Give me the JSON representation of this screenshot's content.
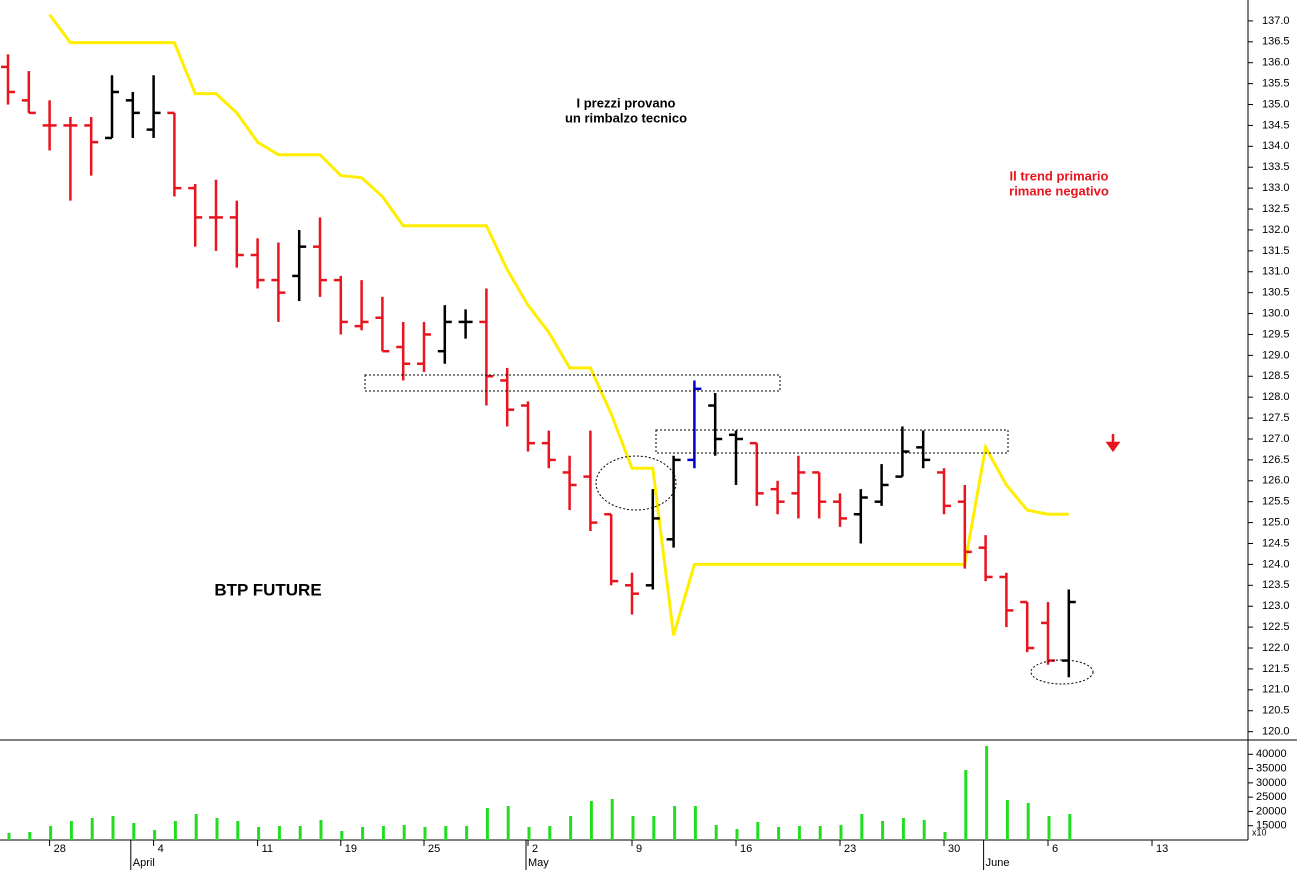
{
  "chart_data": {
    "type": "ohlc",
    "title": "BTP FUTURE",
    "annotations": [
      {
        "lines": [
          "I prezzi provano",
          "un rimbalzo tecnico"
        ],
        "color": "#000000"
      },
      {
        "lines": [
          "Il trend primario",
          "rimane negativo"
        ],
        "color": "#e8141e"
      }
    ],
    "categories": [
      null,
      null,
      "28",
      null,
      null,
      null,
      null,
      "4",
      null,
      null,
      null,
      null,
      "11",
      null,
      null,
      null,
      "19",
      null,
      null,
      null,
      "25",
      null,
      null,
      null,
      null,
      "2",
      null,
      null,
      null,
      null,
      "9",
      null,
      null,
      null,
      null,
      "16",
      null,
      null,
      null,
      null,
      "23",
      null,
      null,
      null,
      null,
      "30",
      null,
      null,
      null,
      null,
      "6",
      null,
      null,
      null,
      null,
      "13",
      null,
      null,
      null,
      null
    ],
    "months": [
      null,
      null,
      null,
      null,
      null,
      null,
      "April",
      null,
      null,
      null,
      null,
      null,
      null,
      null,
      null,
      null,
      null,
      null,
      null,
      null,
      null,
      null,
      null,
      null,
      null,
      "May",
      null,
      null,
      null,
      null,
      null,
      null,
      null,
      null,
      null,
      null,
      null,
      null,
      null,
      null,
      null,
      null,
      null,
      null,
      null,
      null,
      null,
      "June",
      null,
      null,
      null,
      null,
      null,
      null,
      null,
      null,
      null,
      null,
      null,
      null
    ],
    "open": [
      135.9,
      135.1,
      134.5,
      134.5,
      134.5,
      134.2,
      135.1,
      134.4,
      134.8,
      133.0,
      132.3,
      132.3,
      131.4,
      130.8,
      130.9,
      131.6,
      130.8,
      129.7,
      129.9,
      129.2,
      128.8,
      129.1,
      129.8,
      129.8,
      128.4,
      127.8,
      126.9,
      126.2,
      126.1,
      125.2,
      123.5,
      123.5,
      124.6,
      126.5,
      127.8,
      127.1,
      126.9,
      125.8,
      125.7,
      126.2,
      125.5,
      125.2,
      125.5,
      126.1,
      126.8,
      126.2,
      125.5,
      124.4,
      123.7,
      123.1,
      122.6,
      121.7,
      null,
      null,
      null,
      null,
      null,
      null,
      null,
      null
    ],
    "high": [
      136.2,
      135.8,
      135.1,
      134.7,
      134.7,
      135.7,
      135.3,
      135.7,
      134.8,
      133.1,
      133.2,
      132.7,
      131.8,
      131.7,
      132.0,
      132.3,
      130.9,
      130.8,
      130.4,
      129.8,
      129.8,
      130.2,
      130.1,
      130.6,
      128.7,
      127.9,
      127.2,
      126.6,
      127.2,
      125.2,
      123.8,
      125.8,
      126.6,
      128.4,
      128.1,
      127.2,
      126.9,
      126.0,
      126.6,
      126.2,
      125.7,
      125.8,
      126.4,
      127.3,
      127.2,
      126.3,
      125.9,
      124.7,
      123.8,
      123.1,
      123.1,
      123.4,
      null,
      null,
      null,
      null,
      null,
      null,
      null,
      null
    ],
    "low": [
      135.0,
      134.8,
      133.9,
      132.7,
      133.3,
      134.2,
      134.2,
      134.2,
      132.8,
      131.6,
      131.5,
      131.1,
      130.6,
      129.8,
      130.3,
      130.4,
      129.5,
      129.6,
      129.1,
      128.4,
      128.6,
      128.8,
      129.4,
      127.8,
      127.3,
      126.7,
      126.3,
      125.3,
      124.8,
      123.5,
      122.8,
      123.4,
      124.4,
      126.3,
      126.6,
      125.9,
      125.4,
      125.2,
      125.1,
      125.1,
      124.9,
      124.5,
      125.4,
      126.1,
      126.3,
      125.2,
      123.9,
      123.6,
      122.5,
      121.9,
      121.6,
      121.3,
      null,
      null,
      null,
      null,
      null,
      null,
      null,
      null
    ],
    "close": [
      135.3,
      134.8,
      134.5,
      134.5,
      134.1,
      135.3,
      134.8,
      134.8,
      133.0,
      132.3,
      132.3,
      131.4,
      130.8,
      130.5,
      131.6,
      130.8,
      129.8,
      129.8,
      129.1,
      128.8,
      129.5,
      129.8,
      129.8,
      128.5,
      127.7,
      126.9,
      126.5,
      125.9,
      125.0,
      123.6,
      123.3,
      125.1,
      126.5,
      128.2,
      127.0,
      127.0,
      125.7,
      125.5,
      126.2,
      125.5,
      125.1,
      125.6,
      125.9,
      126.7,
      126.5,
      125.4,
      124.3,
      123.7,
      122.9,
      122.0,
      121.7,
      123.1,
      null,
      null,
      null,
      null,
      null,
      null,
      null,
      null
    ],
    "colors": [
      "#e8141e",
      "#e8141e",
      "#e8141e",
      "#e8141e",
      "#e8141e",
      "#000000",
      "#000000",
      "#000000",
      "#e8141e",
      "#e8141e",
      "#e8141e",
      "#e8141e",
      "#e8141e",
      "#e8141e",
      "#000000",
      "#e8141e",
      "#e8141e",
      "#e8141e",
      "#e8141e",
      "#e8141e",
      "#e8141e",
      "#000000",
      "#000000",
      "#e8141e",
      "#e8141e",
      "#e8141e",
      "#e8141e",
      "#e8141e",
      "#e8141e",
      "#e8141e",
      "#e8141e",
      "#000000",
      "#000000",
      "#0000cc",
      "#000000",
      "#000000",
      "#e8141e",
      "#e8141e",
      "#e8141e",
      "#e8141e",
      "#e8141e",
      "#000000",
      "#000000",
      "#000000",
      "#000000",
      "#e8141e",
      "#e8141e",
      "#e8141e",
      "#e8141e",
      "#e8141e",
      "#e8141e",
      "#000000",
      null,
      null,
      null,
      null,
      null,
      null,
      null,
      null
    ],
    "ma": {
      "color": "#ffee00",
      "values": [
        null,
        null,
        137.15,
        136.48,
        136.48,
        136.48,
        136.48,
        136.48,
        136.48,
        135.26,
        135.26,
        134.8,
        134.1,
        133.8,
        133.8,
        133.8,
        133.3,
        133.25,
        132.8,
        132.1,
        132.1,
        132.1,
        132.1,
        132.1,
        131.05,
        130.2,
        129.55,
        128.7,
        128.7,
        127.6,
        126.3,
        126.3,
        122.3,
        124.0,
        124.0,
        124.0,
        124.0,
        124.0,
        124.0,
        124.0,
        124.0,
        124.0,
        124.0,
        124.0,
        124.0,
        124.0,
        124.0,
        126.8,
        125.9,
        125.3,
        125.2,
        125.2,
        null,
        null,
        null,
        null,
        null,
        null,
        null,
        null
      ]
    },
    "ylim": [
      119.8,
      137.5
    ],
    "yticks": [
      {
        "value": 120,
        "label": "120.0"
      },
      {
        "value": 120.5,
        "label": "120.5"
      },
      {
        "value": 121,
        "label": "121.0"
      },
      {
        "value": 121.5,
        "label": "121.5"
      },
      {
        "value": 122,
        "label": "122.0"
      },
      {
        "value": 122.5,
        "label": "122.5"
      },
      {
        "value": 123,
        "label": "123.0"
      },
      {
        "value": 123.5,
        "label": "123.5"
      },
      {
        "value": 124,
        "label": "124.0"
      },
      {
        "value": 124.5,
        "label": "124.5"
      },
      {
        "value": 125,
        "label": "125.0"
      },
      {
        "value": 125.5,
        "label": "125.5"
      },
      {
        "value": 126,
        "label": "126.0"
      },
      {
        "value": 126.5,
        "label": "126.5"
      },
      {
        "value": 127,
        "label": "127.0"
      },
      {
        "value": 127.5,
        "label": "127.5"
      },
      {
        "value": 128,
        "label": "128.0"
      },
      {
        "value": 128.5,
        "label": "128.5"
      },
      {
        "value": 129,
        "label": "129.0"
      },
      {
        "value": 129.5,
        "label": "129.5"
      },
      {
        "value": 130,
        "label": "130.0"
      },
      {
        "value": 130.5,
        "label": "130.5"
      },
      {
        "value": 131,
        "label": "131.0"
      },
      {
        "value": 131.5,
        "label": "131.5"
      },
      {
        "value": 132,
        "label": "132.0"
      },
      {
        "value": 132.5,
        "label": "132.5"
      },
      {
        "value": 133,
        "label": "133.0"
      },
      {
        "value": 133.5,
        "label": "133.5"
      },
      {
        "value": 134,
        "label": "134.0"
      },
      {
        "value": 134.5,
        "label": "134.5"
      },
      {
        "value": 135,
        "label": "135.0"
      },
      {
        "value": 135.5,
        "label": "135.5"
      },
      {
        "value": 136,
        "label": "136.0"
      },
      {
        "value": 136.5,
        "label": "136.5"
      },
      {
        "value": 137,
        "label": "137.0"
      }
    ],
    "volume": {
      "color": "#22dd22",
      "multiplier": "x10",
      "values": [
        12450,
        12800,
        14900,
        16650,
        17700,
        18400,
        15950,
        13500,
        16650,
        19100,
        17700,
        16650,
        14550,
        14900,
        14900,
        17000,
        13150,
        14550,
        14900,
        15250,
        14550,
        14900,
        14900,
        21200,
        21900,
        14550,
        14900,
        18400,
        23650,
        24350,
        18400,
        18400,
        21900,
        21900,
        15250,
        13850,
        16300,
        14550,
        14900,
        14900,
        15250,
        19100,
        16650,
        17700,
        17000,
        12800,
        34500,
        42900,
        24000,
        22950,
        18400,
        19100,
        null,
        null,
        null,
        null,
        null,
        null,
        null,
        null
      ],
      "ylim": [
        10000,
        45000
      ],
      "yticks": [
        15000,
        20000,
        25000,
        30000,
        35000,
        40000
      ]
    }
  }
}
